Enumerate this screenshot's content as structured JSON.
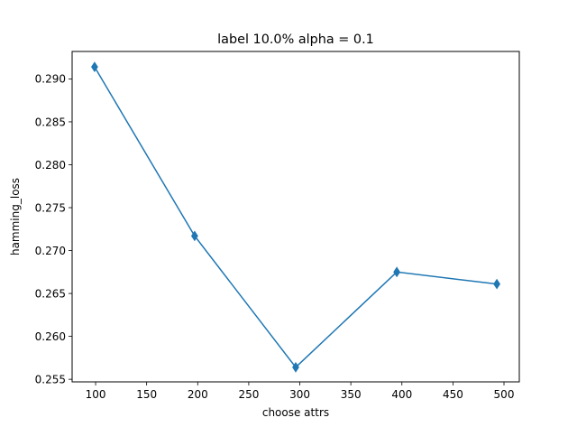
{
  "chart_data": {
    "type": "line",
    "title": "label 10.0% alpha = 0.1",
    "xlabel": "choose attrs",
    "ylabel": "hamming_loss",
    "x": [
      99,
      197,
      296,
      395,
      493
    ],
    "y": [
      0.2914,
      0.2717,
      0.2564,
      0.2675,
      0.2661
    ],
    "marker": "thin-diamond",
    "color": "#1f77b4",
    "xlim": [
      77,
      515
    ],
    "ylim": [
      0.2547,
      0.2932
    ],
    "xticks": [
      100,
      150,
      200,
      250,
      300,
      350,
      400,
      450,
      500
    ],
    "yticks": [
      0.255,
      0.26,
      0.265,
      0.27,
      0.275,
      0.28,
      0.285,
      0.29
    ],
    "xtick_labels": [
      "100",
      "150",
      "200",
      "250",
      "300",
      "350",
      "400",
      "450",
      "500"
    ],
    "ytick_labels": [
      "0.255",
      "0.260",
      "0.265",
      "0.270",
      "0.275",
      "0.280",
      "0.285",
      "0.290"
    ],
    "grid": false,
    "legend": false
  }
}
